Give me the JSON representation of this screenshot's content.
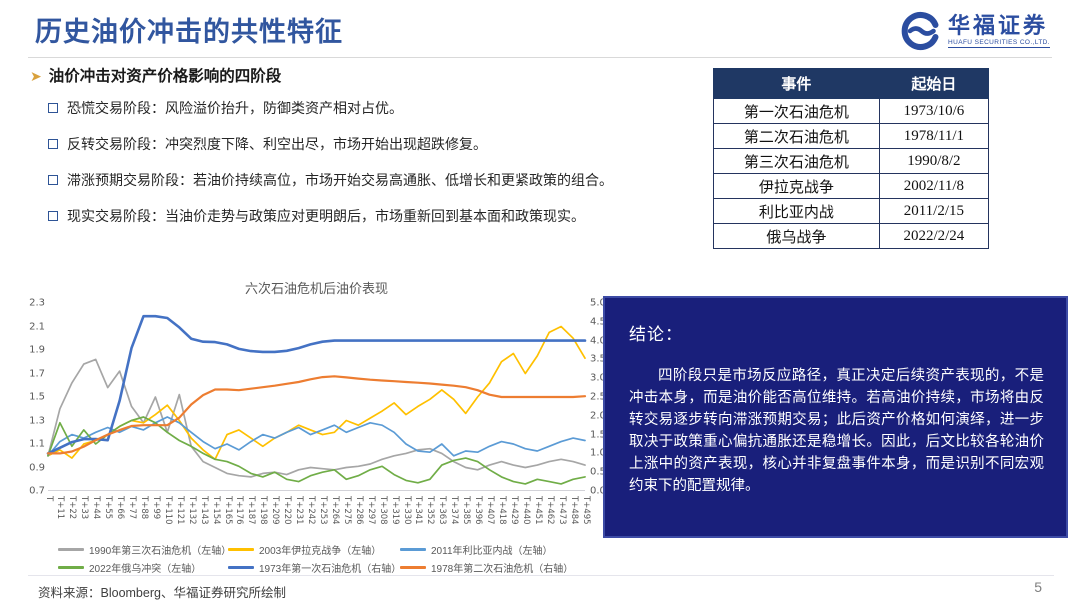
{
  "slide": {
    "title": "历史油价冲击的共性特征",
    "page_number": "5",
    "source": "资料来源：Bloomberg、华福证券研究所绘制"
  },
  "logo": {
    "name": "华福证券",
    "subtitle": "HUAFU SECURITIES CO.,LTD."
  },
  "section": {
    "heading": "油价冲击对资产价格影响的四阶段",
    "bullets": [
      "恐慌交易阶段：风险溢价抬升，防御类资产相对占优。",
      "反转交易阶段：冲突烈度下降、利空出尽，市场开始出现超跌修复。",
      "滞涨预期交易阶段：若油价持续高位，市场开始交易高通胀、低增长和更紧政策的组合。",
      "现实交易阶段：当油价走势与政策应对更明朗后，市场重新回到基本面和政策现实。"
    ]
  },
  "events_table": {
    "headers": [
      "事件",
      "起始日"
    ],
    "rows": [
      [
        "第一次石油危机",
        "1973/10/6"
      ],
      [
        "第二次石油危机",
        "1978/11/1"
      ],
      [
        "第三次石油危机",
        "1990/8/2"
      ],
      [
        "伊拉克战争",
        "2002/11/8"
      ],
      [
        "利比亚内战",
        "2011/2/15"
      ],
      [
        "俄乌战争",
        "2022/2/24"
      ]
    ]
  },
  "conclusion": {
    "title": "结论：",
    "body": "四阶段只是市场反应路径，真正决定后续资产表现的，不是冲击本身，而是油价能否高位维持。若高油价持续，市场将由反转交易逐步转向滞涨预期交易；此后资产价格如何演绎，进一步取决于政策重心偏抗通胀还是稳增长。因此，后文比较各轮油价上涨中的资产表现，核心并非复盘事件本身，而是识别不同宏观约束下的配置规律。"
  },
  "chart_data": {
    "type": "line",
    "title": "六次石油危机后油价表现",
    "x_labels": [
      "T",
      "T+11",
      "T+22",
      "T+33",
      "T+44",
      "T+55",
      "T+66",
      "T+77",
      "T+88",
      "T+99",
      "T+110",
      "T+121",
      "T+132",
      "T+143",
      "T+154",
      "T+165",
      "T+176",
      "T+187",
      "T+198",
      "T+209",
      "T+220",
      "T+231",
      "T+242",
      "T+253",
      "T+264",
      "T+275",
      "T+286",
      "T+297",
      "T+308",
      "T+319",
      "T+330",
      "T+341",
      "T+352",
      "T+363",
      "T+374",
      "T+385",
      "T+396",
      "T+407",
      "T+418",
      "T+429",
      "T+440",
      "T+451",
      "T+462",
      "T+473",
      "T+484",
      "T+495"
    ],
    "left_axis": {
      "min": 0.7,
      "max": 2.3,
      "ticks": [
        "2.3",
        "2.1",
        "1.9",
        "1.7",
        "1.5",
        "1.3",
        "1.1",
        "0.9",
        "0.7"
      ]
    },
    "right_axis": {
      "min": 0.0,
      "max": 5.0,
      "ticks": [
        "5.00",
        "4.50",
        "4.00",
        "3.50",
        "3.00",
        "2.50",
        "2.00",
        "1.50",
        "1.00",
        "0.50",
        "0.00"
      ]
    },
    "legend_position": "bottom",
    "grid": false,
    "series": [
      {
        "name": "1990年第三次石油危机（左轴）",
        "axis": "left",
        "color": "#A6A6A6",
        "width": 1.7,
        "values": [
          1.0,
          1.4,
          1.62,
          1.78,
          1.82,
          1.58,
          1.72,
          1.42,
          1.28,
          1.5,
          1.2,
          1.52,
          1.08,
          0.95,
          0.9,
          0.85,
          0.83,
          0.82,
          0.85,
          0.86,
          0.84,
          0.88,
          0.9,
          0.89,
          0.88,
          0.9,
          0.91,
          0.93,
          0.97,
          1.0,
          1.02,
          1.05,
          1.06,
          1.02,
          0.95,
          0.9,
          0.88,
          0.92,
          0.95,
          0.92,
          0.9,
          0.92,
          0.95,
          0.97,
          0.95,
          0.92
        ]
      },
      {
        "name": "2003年伊拉克战争（左轴）",
        "axis": "left",
        "color": "#FFC000",
        "width": 1.7,
        "values": [
          1.0,
          1.05,
          0.98,
          1.1,
          1.13,
          1.18,
          1.25,
          1.3,
          1.28,
          1.35,
          1.43,
          1.3,
          1.15,
          1.05,
          0.97,
          1.18,
          1.22,
          1.15,
          1.08,
          1.15,
          1.2,
          1.26,
          1.22,
          1.18,
          1.2,
          1.3,
          1.26,
          1.32,
          1.38,
          1.45,
          1.35,
          1.42,
          1.48,
          1.56,
          1.48,
          1.36,
          1.5,
          1.62,
          1.8,
          1.87,
          1.7,
          1.85,
          2.05,
          2.1,
          2.0,
          1.83
        ]
      },
      {
        "name": "2011年利比亚内战（左轴）",
        "axis": "left",
        "color": "#5B9BD5",
        "width": 1.7,
        "values": [
          1.0,
          1.12,
          1.18,
          1.15,
          1.2,
          1.24,
          1.2,
          1.25,
          1.22,
          1.28,
          1.33,
          1.28,
          1.2,
          1.12,
          1.06,
          1.1,
          1.05,
          1.12,
          1.18,
          1.15,
          1.2,
          1.24,
          1.18,
          1.22,
          1.26,
          1.2,
          1.24,
          1.28,
          1.26,
          1.2,
          1.1,
          1.04,
          1.03,
          1.1,
          1.0,
          1.04,
          1.03,
          1.08,
          1.12,
          1.1,
          1.06,
          1.04,
          1.08,
          1.12,
          1.15,
          1.13
        ]
      },
      {
        "name": "2022年俄乌冲突（左轴）",
        "axis": "left",
        "color": "#70AD47",
        "width": 1.7,
        "values": [
          1.0,
          1.28,
          1.08,
          1.22,
          1.1,
          1.18,
          1.25,
          1.3,
          1.33,
          1.28,
          1.2,
          1.13,
          1.08,
          1.02,
          0.97,
          0.95,
          0.91,
          0.85,
          0.82,
          0.86,
          0.8,
          0.78,
          0.83,
          0.86,
          0.88,
          0.8,
          0.83,
          0.88,
          0.91,
          0.84,
          0.79,
          0.77,
          0.8,
          0.92,
          0.96,
          0.98,
          0.95,
          0.88,
          0.82,
          0.78,
          0.76,
          0.8,
          0.78,
          0.76,
          0.8,
          0.82
        ]
      },
      {
        "name": "1973年第一次石油危机（右轴）",
        "axis": "right",
        "color": "#4472C4",
        "width": 2.6,
        "values": [
          1.0,
          1.15,
          1.3,
          1.38,
          1.38,
          1.35,
          2.4,
          3.8,
          4.65,
          4.65,
          4.6,
          4.35,
          4.05,
          3.97,
          3.96,
          3.9,
          3.78,
          3.72,
          3.7,
          3.7,
          3.73,
          3.8,
          3.9,
          3.97,
          4.0,
          4.0,
          4.0,
          4.0,
          4.0,
          4.0,
          4.0,
          4.0,
          4.0,
          4.0,
          4.0,
          4.0,
          4.0,
          4.0,
          4.0,
          4.0,
          4.0,
          4.0,
          4.0,
          4.0,
          4.0,
          4.0
        ]
      },
      {
        "name": "1978年第二次石油危机（右轴）",
        "axis": "right",
        "color": "#ED7D31",
        "width": 2.2,
        "values": [
          1.0,
          1.0,
          1.05,
          1.18,
          1.35,
          1.5,
          1.62,
          1.73,
          1.75,
          1.75,
          1.75,
          1.95,
          2.3,
          2.55,
          2.7,
          2.7,
          2.68,
          2.72,
          2.76,
          2.8,
          2.85,
          2.9,
          2.97,
          3.03,
          3.05,
          3.02,
          2.99,
          2.96,
          2.94,
          2.92,
          2.9,
          2.88,
          2.86,
          2.83,
          2.8,
          2.76,
          2.68,
          2.56,
          2.5,
          2.5,
          2.5,
          2.5,
          2.5,
          2.5,
          2.5,
          2.52
        ]
      }
    ]
  }
}
